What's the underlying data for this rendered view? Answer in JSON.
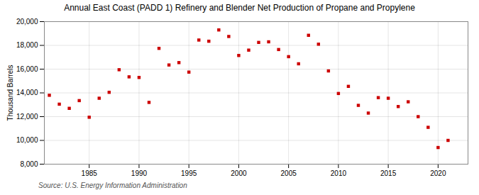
{
  "chart_data": {
    "type": "scatter",
    "title": "Annual East Coast (PADD 1) Refinery and Blender Net Production of Propane and Propylene",
    "ylabel": "Thousand Barrels",
    "source": "Source: U.S. Energy Information Administration",
    "color": "#cc0000",
    "marker": "square",
    "x": [
      1981,
      1982,
      1983,
      1984,
      1985,
      1986,
      1987,
      1988,
      1989,
      1990,
      1991,
      1992,
      1993,
      1994,
      1995,
      1996,
      1997,
      1998,
      1999,
      2000,
      2001,
      2002,
      2003,
      2004,
      2005,
      2006,
      2007,
      2008,
      2009,
      2010,
      2011,
      2012,
      2013,
      2014,
      2015,
      2016,
      2017,
      2018,
      2019,
      2020,
      2021
    ],
    "values": [
      13800,
      13050,
      12700,
      13350,
      11950,
      13550,
      14050,
      15950,
      15350,
      15300,
      13200,
      17750,
      16350,
      16550,
      15750,
      18450,
      18350,
      19300,
      18750,
      17150,
      17600,
      18250,
      18300,
      17650,
      17050,
      16450,
      18850,
      18100,
      15850,
      13950,
      14550,
      12950,
      12300,
      13600,
      13550,
      12850,
      13250,
      12000,
      11100,
      9400,
      10000
    ],
    "xlim": [
      1980.5,
      2023
    ],
    "xticks": [
      1985,
      1990,
      1995,
      2000,
      2005,
      2010,
      2015,
      2020
    ],
    "ylim": [
      8000,
      20000
    ],
    "yticks": [
      {
        "value": 8000,
        "label": "8,000"
      },
      {
        "value": 10000,
        "label": "10,000"
      },
      {
        "value": 12000,
        "label": "12,000"
      },
      {
        "value": 14000,
        "label": "14,000"
      },
      {
        "value": 16000,
        "label": "16,000"
      },
      {
        "value": 18000,
        "label": "18,000"
      },
      {
        "value": 20000,
        "label": "20,000"
      }
    ],
    "grid": true
  }
}
